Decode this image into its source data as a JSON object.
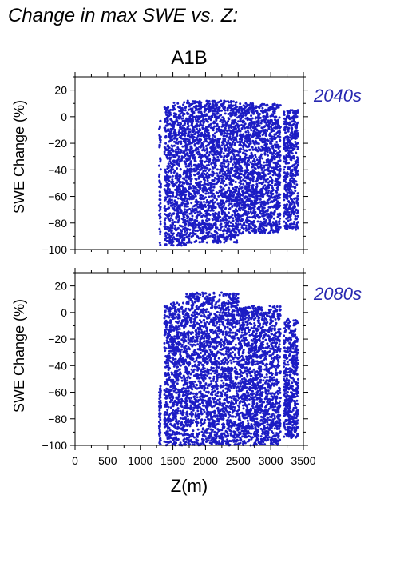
{
  "header": {
    "title": "Change in max SWE vs. Z:"
  },
  "scenario": "A1B",
  "colors": {
    "points": "#1c1cc4",
    "period_label": "#2828b0",
    "axis": "#000000"
  },
  "chart_data": [
    {
      "type": "scatter",
      "period_label": "2040s",
      "ylabel": "SWE Change (%)",
      "xlim": [
        0,
        3500
      ],
      "ylim": [
        -100,
        30
      ],
      "yticks": [
        "20",
        "0",
        "−20",
        "−40",
        "−60",
        "−80",
        "−100"
      ],
      "clusters": [
        {
          "x_range": [
            1290,
            1315
          ],
          "y_range": [
            -97,
            -3
          ]
        },
        {
          "x_range": [
            1370,
            1450
          ],
          "y_range": [
            -97,
            8
          ]
        },
        {
          "x_range": [
            1450,
            1700
          ],
          "y_range": [
            -97,
            11
          ]
        },
        {
          "x_range": [
            1700,
            2500
          ],
          "y_range": [
            -95,
            12
          ]
        },
        {
          "x_range": [
            2500,
            3150
          ],
          "y_range": [
            -88,
            10
          ]
        },
        {
          "x_range": [
            3200,
            3420
          ],
          "y_range": [
            -85,
            5
          ]
        }
      ]
    },
    {
      "type": "scatter",
      "period_label": "2080s",
      "ylabel": "SWE Change (%)",
      "xlabel": "Z(m)",
      "xlim": [
        0,
        3500
      ],
      "ylim": [
        -100,
        30
      ],
      "xticks": [
        "0",
        "500",
        "1000",
        "1500",
        "2000",
        "2500",
        "3000",
        "3500"
      ],
      "yticks": [
        "20",
        "0",
        "−20",
        "−40",
        "−60",
        "−80",
        "−100"
      ],
      "clusters": [
        {
          "x_range": [
            1290,
            1315
          ],
          "y_range": [
            -100,
            -55
          ]
        },
        {
          "x_range": [
            1370,
            1450
          ],
          "y_range": [
            -100,
            6
          ]
        },
        {
          "x_range": [
            1450,
            1700
          ],
          "y_range": [
            -100,
            8
          ]
        },
        {
          "x_range": [
            1700,
            2500
          ],
          "y_range": [
            -100,
            15
          ]
        },
        {
          "x_range": [
            2500,
            3150
          ],
          "y_range": [
            -100,
            5
          ]
        },
        {
          "x_range": [
            3200,
            3420
          ],
          "y_range": [
            -95,
            -5
          ]
        }
      ]
    }
  ]
}
